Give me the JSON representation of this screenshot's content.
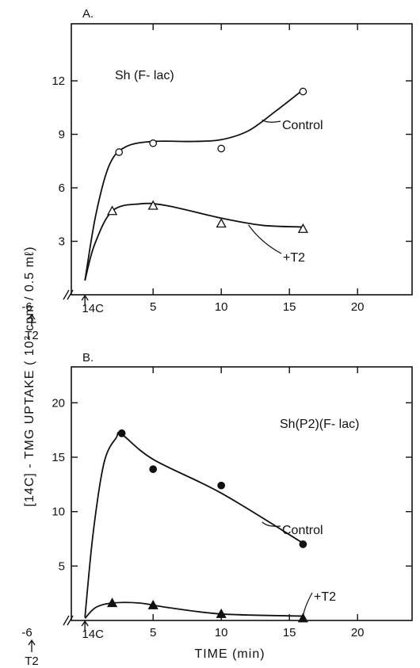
{
  "chart_data": [
    {
      "panel": "A.",
      "type": "scatter",
      "strain_label": "Sh (F- lac)",
      "x_ticks": [
        "5",
        "10",
        "15",
        "20"
      ],
      "y_ticks": [
        "3",
        "6",
        "9",
        "12"
      ],
      "xlim": [
        -1,
        24
      ],
      "ylim": [
        0,
        15.2
      ],
      "x_marker_labels": {
        "t2_time": "-6",
        "t2_label": "T2",
        "c14_label": "14C"
      },
      "series": [
        {
          "name": "Control",
          "marker": "open-circle",
          "points": [
            [
              2.5,
              8.0
            ],
            [
              5,
              8.5
            ],
            [
              10,
              8.2
            ],
            [
              16,
              11.4
            ]
          ],
          "curve": [
            [
              0,
              0.8
            ],
            [
              0.8,
              4.5
            ],
            [
              1.8,
              7.3
            ],
            [
              3,
              8.3
            ],
            [
              5,
              8.6
            ],
            [
              8,
              8.6
            ],
            [
              10,
              8.7
            ],
            [
              12,
              9.2
            ],
            [
              14,
              10.3
            ],
            [
              16,
              11.5
            ]
          ]
        },
        {
          "name": "+T2",
          "marker": "open-triangle",
          "points": [
            [
              2,
              4.7
            ],
            [
              5,
              5.0
            ],
            [
              10,
              4.0
            ],
            [
              16,
              3.7
            ]
          ],
          "curve": [
            [
              0,
              0.8
            ],
            [
              0.7,
              2.8
            ],
            [
              2,
              4.7
            ],
            [
              4,
              5.1
            ],
            [
              6,
              5.0
            ],
            [
              10,
              4.3
            ],
            [
              13,
              3.9
            ],
            [
              16,
              3.8
            ]
          ]
        }
      ]
    },
    {
      "panel": "B.",
      "type": "scatter",
      "strain_label": "Sh(P2)(F- lac)",
      "x_ticks": [
        "5",
        "10",
        "15",
        "20"
      ],
      "y_ticks": [
        "5",
        "10",
        "15",
        "20"
      ],
      "xlim": [
        -1,
        24
      ],
      "ylim": [
        0,
        23.3
      ],
      "x_marker_labels": {
        "t2_time": "-6",
        "t2_label": "T2",
        "c14_label": "14C"
      },
      "series": [
        {
          "name": "Control",
          "marker": "filled-circle",
          "points": [
            [
              2.7,
              17.2
            ],
            [
              5,
              13.9
            ],
            [
              10,
              12.4
            ],
            [
              16,
              7.0
            ]
          ],
          "curve": [
            [
              0,
              0.3
            ],
            [
              0.6,
              8.0
            ],
            [
              1.4,
              14.5
            ],
            [
              2.3,
              16.8
            ],
            [
              2.7,
              17.1
            ],
            [
              5,
              14.8
            ],
            [
              10,
              11.7
            ],
            [
              16,
              7.1
            ]
          ]
        },
        {
          "name": "+T2",
          "marker": "filled-triangle",
          "points": [
            [
              2,
              1.6
            ],
            [
              5,
              1.4
            ],
            [
              10,
              0.6
            ],
            [
              16,
              0.2
            ]
          ],
          "curve": [
            [
              0,
              0.2
            ],
            [
              0.8,
              1.2
            ],
            [
              2,
              1.6
            ],
            [
              4,
              1.6
            ],
            [
              6,
              1.2
            ],
            [
              10,
              0.6
            ],
            [
              16,
              0.4
            ]
          ]
        }
      ]
    }
  ],
  "labels": {
    "y_axis_title": "[14C] - TMG UPTAKE ( 10² cpm / 0.5 mℓ)",
    "x_axis_title": "TIME (min)"
  }
}
